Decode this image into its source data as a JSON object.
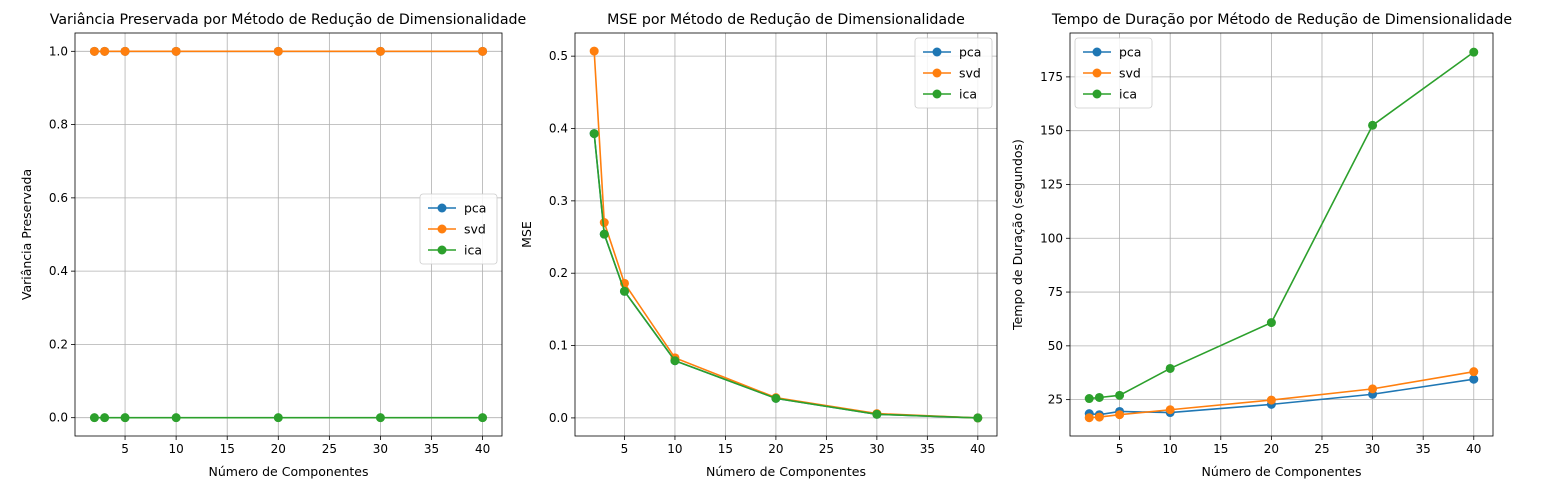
{
  "chart_data": [
    {
      "type": "line",
      "title": "Variância Preservada por Método de Redução de Dimensionalidade",
      "xlabel": "Número de Componentes",
      "ylabel": "Variância Preservada",
      "x": [
        2,
        3,
        5,
        10,
        20,
        30,
        40
      ],
      "xlim": [
        0.1,
        41.9
      ],
      "ylim": [
        -0.05,
        1.05
      ],
      "xticks": [
        5,
        10,
        15,
        20,
        25,
        30,
        35,
        40
      ],
      "yticks": [
        0.0,
        0.2,
        0.4,
        0.6,
        0.8,
        1.0
      ],
      "ytick_format": 1,
      "grid": true,
      "legend_position": "center-right",
      "series": [
        {
          "name": "pca",
          "color": "#1f77b4",
          "values": [
            1.0,
            1.0,
            1.0,
            1.0,
            1.0,
            1.0,
            1.0
          ]
        },
        {
          "name": "svd",
          "color": "#ff7f0e",
          "values": [
            1.0,
            1.0,
            1.0,
            1.0,
            1.0,
            1.0,
            1.0
          ]
        },
        {
          "name": "ica",
          "color": "#2ca02c",
          "values": [
            0.0,
            0.0,
            0.0,
            0.0,
            0.0,
            0.0,
            0.0
          ]
        }
      ]
    },
    {
      "type": "line",
      "title": "MSE por Método de Redução de Dimensionalidade",
      "xlabel": "Número de Componentes",
      "ylabel": "MSE",
      "x": [
        2,
        3,
        5,
        10,
        20,
        30,
        40
      ],
      "xlim": [
        0.1,
        41.9
      ],
      "ylim": [
        -0.025,
        0.532
      ],
      "xticks": [
        5,
        10,
        15,
        20,
        25,
        30,
        35,
        40
      ],
      "yticks": [
        0.0,
        0.1,
        0.2,
        0.3,
        0.4,
        0.5
      ],
      "ytick_format": 1,
      "grid": true,
      "legend_position": "top-right",
      "series": [
        {
          "name": "pca",
          "color": "#1f77b4",
          "values": [
            0.393,
            0.254,
            0.175,
            0.079,
            0.027,
            0.005,
            0.0
          ]
        },
        {
          "name": "svd",
          "color": "#ff7f0e",
          "values": [
            0.507,
            0.27,
            0.186,
            0.083,
            0.028,
            0.006,
            0.0
          ]
        },
        {
          "name": "ica",
          "color": "#2ca02c",
          "values": [
            0.393,
            0.254,
            0.175,
            0.079,
            0.027,
            0.005,
            0.0
          ]
        }
      ]
    },
    {
      "type": "line",
      "title": "Tempo de Duração por Método de Redução de Dimensionalidade",
      "xlabel": "Número de Componentes",
      "ylabel": "Tempo de Duração (segundos)",
      "x": [
        2,
        3,
        5,
        10,
        20,
        30,
        40
      ],
      "xlim": [
        0.1,
        41.9
      ],
      "ylim": [
        8.1,
        195.4
      ],
      "xticks": [
        5,
        10,
        15,
        20,
        25,
        30,
        35,
        40
      ],
      "yticks": [
        25,
        50,
        75,
        100,
        125,
        150,
        175
      ],
      "ytick_format": 0,
      "grid": true,
      "legend_position": "top-left",
      "series": [
        {
          "name": "pca",
          "color": "#1f77b4",
          "values": [
            18.5,
            18.0,
            19.5,
            19.0,
            22.8,
            27.5,
            34.5
          ]
        },
        {
          "name": "svd",
          "color": "#ff7f0e",
          "values": [
            16.6,
            16.9,
            18.0,
            20.3,
            24.8,
            30.0,
            38.0
          ]
        },
        {
          "name": "ica",
          "color": "#2ca02c",
          "values": [
            25.5,
            26.0,
            27.0,
            39.5,
            60.8,
            152.5,
            186.5
          ]
        }
      ]
    }
  ]
}
